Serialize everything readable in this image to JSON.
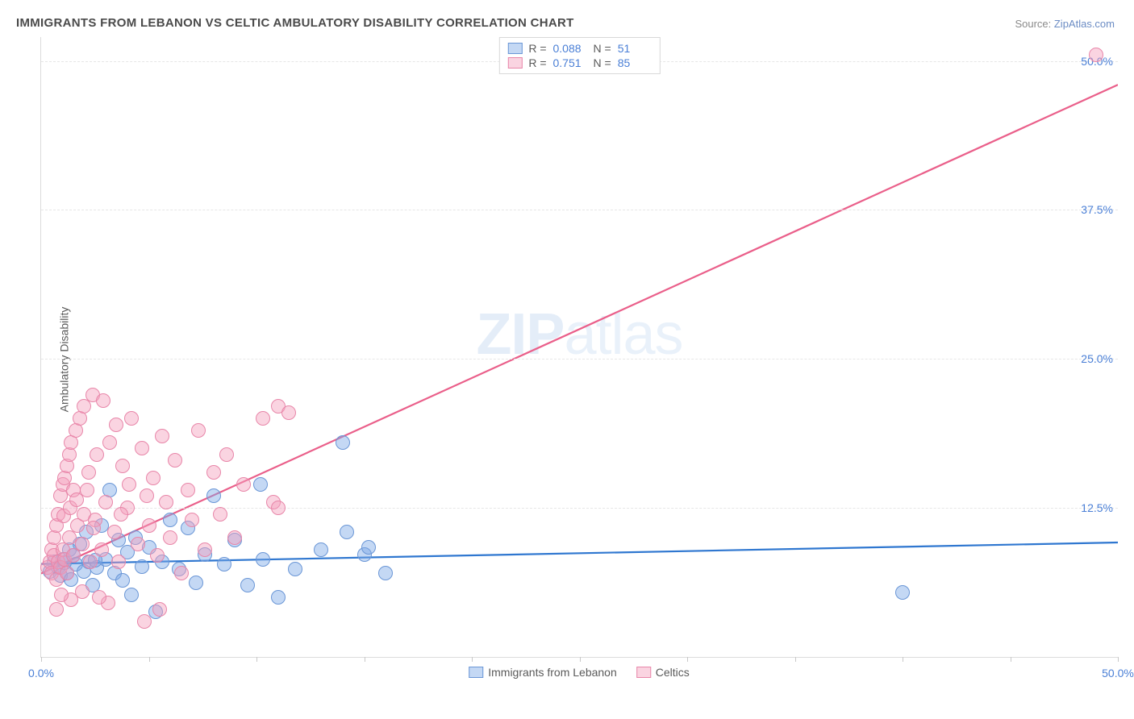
{
  "title": "IMMIGRANTS FROM LEBANON VS CELTIC AMBULATORY DISABILITY CORRELATION CHART",
  "source_prefix": "Source: ",
  "source_link": "ZipAtlas.com",
  "ylabel": "Ambulatory Disability",
  "watermark_a": "ZIP",
  "watermark_b": "atlas",
  "chart": {
    "type": "scatter",
    "xlim": [
      0,
      50
    ],
    "ylim": [
      0,
      52
    ],
    "y_ticks": [
      12.5,
      25.0,
      37.5,
      50.0
    ],
    "y_tick_labels": [
      "12.5%",
      "25.0%",
      "37.5%",
      "50.0%"
    ],
    "x_ticks": [
      0,
      5,
      10,
      15,
      20,
      25,
      30,
      35,
      40,
      45,
      50
    ],
    "x_tick_labels_shown": {
      "0": "0.0%",
      "50": "50.0%"
    },
    "background_color": "#ffffff",
    "grid_color": "#e6e6e6",
    "axis_color": "#dcdcdc",
    "tick_label_color": "#4a7fd6",
    "marker_radius": 9,
    "series": [
      {
        "id": "blue",
        "label": "Immigrants from Lebanon",
        "fill": "rgba(124,169,230,0.45)",
        "stroke": "#6a96d6",
        "line_color": "#2f77d0",
        "line_width": 2.2,
        "r_label": "R = ",
        "r_value": "0.088",
        "n_label": "N = ",
        "n_value": "51",
        "regression": {
          "y_at_x0": 7.8,
          "y_at_xmax": 9.6
        },
        "points": [
          [
            0.4,
            7.2
          ],
          [
            0.6,
            8.0
          ],
          [
            0.8,
            7.5
          ],
          [
            0.9,
            6.8
          ],
          [
            1.0,
            8.2
          ],
          [
            1.2,
            7.0
          ],
          [
            1.3,
            9.0
          ],
          [
            1.4,
            6.5
          ],
          [
            1.5,
            8.5
          ],
          [
            1.6,
            7.8
          ],
          [
            1.8,
            9.5
          ],
          [
            2.0,
            7.2
          ],
          [
            2.1,
            10.5
          ],
          [
            2.2,
            8.0
          ],
          [
            2.4,
            6.0
          ],
          [
            2.6,
            7.5
          ],
          [
            2.8,
            11.0
          ],
          [
            3.0,
            8.2
          ],
          [
            3.2,
            14.0
          ],
          [
            3.4,
            7.0
          ],
          [
            3.6,
            9.8
          ],
          [
            3.8,
            6.4
          ],
          [
            4.0,
            8.8
          ],
          [
            4.2,
            5.2
          ],
          [
            4.4,
            10.0
          ],
          [
            4.7,
            7.6
          ],
          [
            5.0,
            9.2
          ],
          [
            5.3,
            3.8
          ],
          [
            5.6,
            8.0
          ],
          [
            6.0,
            11.5
          ],
          [
            6.4,
            7.4
          ],
          [
            6.8,
            10.8
          ],
          [
            7.2,
            6.2
          ],
          [
            7.6,
            8.6
          ],
          [
            8.0,
            13.5
          ],
          [
            8.5,
            7.8
          ],
          [
            9.0,
            9.8
          ],
          [
            9.6,
            6.0
          ],
          [
            10.2,
            14.5
          ],
          [
            10.3,
            8.2
          ],
          [
            11.0,
            5.0
          ],
          [
            11.8,
            7.4
          ],
          [
            13.0,
            9.0
          ],
          [
            14.2,
            10.5
          ],
          [
            14.0,
            18.0
          ],
          [
            15.0,
            8.6
          ],
          [
            15.2,
            9.2
          ],
          [
            16.0,
            7.0
          ],
          [
            40.0,
            5.4
          ],
          [
            1.1,
            7.9
          ],
          [
            2.5,
            8.1
          ]
        ]
      },
      {
        "id": "pink",
        "label": "Celtics",
        "fill": "rgba(244,160,188,0.45)",
        "stroke": "#e886a9",
        "line_color": "#ea5f8a",
        "line_width": 2.2,
        "r_label": "R = ",
        "r_value": "0.751",
        "n_label": "N = ",
        "n_value": "85",
        "regression": {
          "y_at_x0": 7.0,
          "y_at_xmax": 48.0
        },
        "points": [
          [
            0.3,
            7.5
          ],
          [
            0.4,
            8.0
          ],
          [
            0.5,
            9.0
          ],
          [
            0.5,
            7.0
          ],
          [
            0.6,
            10.0
          ],
          [
            0.6,
            8.5
          ],
          [
            0.7,
            11.0
          ],
          [
            0.7,
            6.5
          ],
          [
            0.8,
            12.0
          ],
          [
            0.8,
            8.0
          ],
          [
            0.9,
            13.5
          ],
          [
            0.9,
            7.5
          ],
          [
            1.0,
            14.5
          ],
          [
            1.0,
            9.0
          ],
          [
            1.1,
            15.0
          ],
          [
            1.1,
            8.2
          ],
          [
            1.2,
            16.0
          ],
          [
            1.2,
            7.0
          ],
          [
            1.3,
            17.0
          ],
          [
            1.3,
            10.0
          ],
          [
            1.4,
            18.0
          ],
          [
            1.5,
            14.0
          ],
          [
            1.5,
            8.5
          ],
          [
            1.6,
            19.0
          ],
          [
            1.7,
            11.0
          ],
          [
            1.8,
            20.0
          ],
          [
            1.9,
            9.5
          ],
          [
            2.0,
            21.0
          ],
          [
            2.0,
            12.0
          ],
          [
            2.2,
            15.5
          ],
          [
            2.3,
            8.0
          ],
          [
            2.4,
            22.0
          ],
          [
            2.5,
            11.5
          ],
          [
            2.6,
            17.0
          ],
          [
            2.8,
            9.0
          ],
          [
            2.9,
            21.5
          ],
          [
            3.0,
            13.0
          ],
          [
            3.2,
            18.0
          ],
          [
            3.4,
            10.5
          ],
          [
            3.5,
            19.5
          ],
          [
            3.6,
            8.0
          ],
          [
            3.8,
            16.0
          ],
          [
            4.0,
            12.5
          ],
          [
            4.2,
            20.0
          ],
          [
            4.5,
            9.5
          ],
          [
            4.7,
            17.5
          ],
          [
            5.0,
            11.0
          ],
          [
            5.2,
            15.0
          ],
          [
            5.4,
            8.5
          ],
          [
            5.6,
            18.5
          ],
          [
            5.8,
            13.0
          ],
          [
            6.0,
            10.0
          ],
          [
            6.2,
            16.5
          ],
          [
            6.5,
            7.0
          ],
          [
            6.8,
            14.0
          ],
          [
            7.0,
            11.5
          ],
          [
            7.3,
            19.0
          ],
          [
            7.6,
            9.0
          ],
          [
            8.0,
            15.5
          ],
          [
            8.3,
            12.0
          ],
          [
            8.6,
            17.0
          ],
          [
            9.0,
            10.0
          ],
          [
            9.4,
            14.5
          ],
          [
            10.3,
            20.0
          ],
          [
            11.0,
            21.0
          ],
          [
            11.5,
            20.5
          ],
          [
            10.8,
            13.0
          ],
          [
            11.0,
            12.5
          ],
          [
            5.5,
            4.0
          ],
          [
            4.8,
            3.0
          ],
          [
            3.1,
            4.5
          ],
          [
            2.7,
            5.0
          ],
          [
            1.9,
            5.5
          ],
          [
            1.4,
            4.8
          ],
          [
            0.95,
            5.2
          ],
          [
            0.7,
            4.0
          ],
          [
            49.0,
            50.5
          ],
          [
            1.05,
            11.8
          ],
          [
            1.35,
            12.5
          ],
          [
            1.65,
            13.2
          ],
          [
            2.15,
            14.0
          ],
          [
            2.45,
            10.8
          ],
          [
            3.7,
            12.0
          ],
          [
            4.1,
            14.5
          ],
          [
            4.9,
            13.5
          ]
        ]
      }
    ]
  },
  "legend_bottom": [
    {
      "series": "blue"
    },
    {
      "series": "pink"
    }
  ]
}
